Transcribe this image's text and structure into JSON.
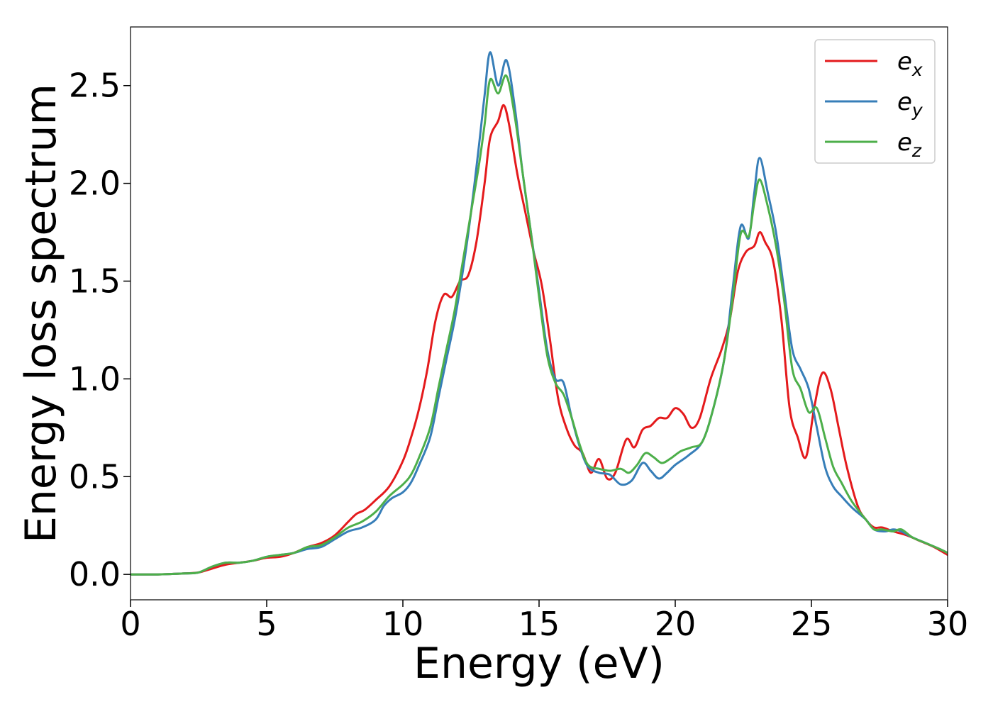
{
  "chart_data": {
    "type": "line",
    "xlabel": "Energy (eV)",
    "ylabel": "Energy loss spectrum",
    "xlim": [
      0,
      30
    ],
    "ylim": [
      -0.13,
      2.8
    ],
    "xticks": [
      0,
      5,
      10,
      15,
      20,
      25,
      30
    ],
    "xtick_labels": [
      "0",
      "5",
      "10",
      "15",
      "20",
      "25",
      "30"
    ],
    "yticks": [
      0.0,
      0.5,
      1.0,
      1.5,
      2.0,
      2.5
    ],
    "ytick_labels": [
      "0.0",
      "0.5",
      "1.0",
      "1.5",
      "2.0",
      "2.5"
    ],
    "grid": false,
    "legend_position": "top-right",
    "series": [
      {
        "name": "e",
        "subscript": "x",
        "color": "#e41a1c",
        "points": [
          [
            0,
            0
          ],
          [
            1,
            0
          ],
          [
            2,
            0.005
          ],
          [
            2.5,
            0.01
          ],
          [
            3,
            0.03
          ],
          [
            3.5,
            0.05
          ],
          [
            4,
            0.06
          ],
          [
            4.5,
            0.07
          ],
          [
            5,
            0.085
          ],
          [
            5.5,
            0.09
          ],
          [
            6,
            0.11
          ],
          [
            6.5,
            0.14
          ],
          [
            7,
            0.16
          ],
          [
            7.5,
            0.2
          ],
          [
            8,
            0.27
          ],
          [
            8.3,
            0.31
          ],
          [
            8.6,
            0.33
          ],
          [
            9,
            0.38
          ],
          [
            9.5,
            0.45
          ],
          [
            10,
            0.58
          ],
          [
            10.3,
            0.7
          ],
          [
            10.6,
            0.85
          ],
          [
            10.9,
            1.05
          ],
          [
            11.2,
            1.3
          ],
          [
            11.5,
            1.43
          ],
          [
            11.8,
            1.42
          ],
          [
            12.1,
            1.5
          ],
          [
            12.4,
            1.53
          ],
          [
            12.7,
            1.7
          ],
          [
            13,
            2
          ],
          [
            13.2,
            2.23
          ],
          [
            13.5,
            2.32
          ],
          [
            13.7,
            2.4
          ],
          [
            13.9,
            2.3
          ],
          [
            14.2,
            2.05
          ],
          [
            14.5,
            1.85
          ],
          [
            14.8,
            1.65
          ],
          [
            15.1,
            1.48
          ],
          [
            15.4,
            1.2
          ],
          [
            15.7,
            0.9
          ],
          [
            16,
            0.75
          ],
          [
            16.3,
            0.66
          ],
          [
            16.6,
            0.62
          ],
          [
            16.9,
            0.52
          ],
          [
            17.2,
            0.59
          ],
          [
            17.5,
            0.49
          ],
          [
            17.8,
            0.52
          ],
          [
            18.2,
            0.69
          ],
          [
            18.5,
            0.65
          ],
          [
            18.8,
            0.74
          ],
          [
            19.1,
            0.76
          ],
          [
            19.4,
            0.8
          ],
          [
            19.7,
            0.8
          ],
          [
            20,
            0.85
          ],
          [
            20.3,
            0.82
          ],
          [
            20.6,
            0.75
          ],
          [
            20.9,
            0.8
          ],
          [
            21.3,
            1
          ],
          [
            21.7,
            1.15
          ],
          [
            22,
            1.3
          ],
          [
            22.3,
            1.55
          ],
          [
            22.6,
            1.65
          ],
          [
            22.9,
            1.68
          ],
          [
            23.1,
            1.75
          ],
          [
            23.3,
            1.7
          ],
          [
            23.6,
            1.6
          ],
          [
            23.9,
            1.3
          ],
          [
            24.2,
            0.85
          ],
          [
            24.5,
            0.7
          ],
          [
            24.8,
            0.6
          ],
          [
            25.1,
            0.85
          ],
          [
            25.4,
            1.03
          ],
          [
            25.7,
            0.95
          ],
          [
            26,
            0.75
          ],
          [
            26.3,
            0.55
          ],
          [
            26.7,
            0.35
          ],
          [
            27,
            0.28
          ],
          [
            27.3,
            0.24
          ],
          [
            27.6,
            0.24
          ],
          [
            28,
            0.22
          ],
          [
            28.5,
            0.2
          ],
          [
            29,
            0.17
          ],
          [
            29.5,
            0.14
          ],
          [
            30,
            0.1
          ]
        ]
      },
      {
        "name": "e",
        "subscript": "y",
        "color": "#377eb8",
        "points": [
          [
            0,
            0
          ],
          [
            1,
            0
          ],
          [
            2,
            0.005
          ],
          [
            2.5,
            0.01
          ],
          [
            3,
            0.04
          ],
          [
            3.5,
            0.06
          ],
          [
            4,
            0.06
          ],
          [
            4.5,
            0.07
          ],
          [
            5,
            0.09
          ],
          [
            5.5,
            0.1
          ],
          [
            6,
            0.11
          ],
          [
            6.5,
            0.13
          ],
          [
            7,
            0.14
          ],
          [
            7.5,
            0.18
          ],
          [
            8,
            0.22
          ],
          [
            8.5,
            0.24
          ],
          [
            9,
            0.28
          ],
          [
            9.3,
            0.35
          ],
          [
            9.6,
            0.39
          ],
          [
            10,
            0.42
          ],
          [
            10.3,
            0.47
          ],
          [
            10.6,
            0.56
          ],
          [
            11,
            0.7
          ],
          [
            11.3,
            0.9
          ],
          [
            11.6,
            1.1
          ],
          [
            11.9,
            1.3
          ],
          [
            12.2,
            1.55
          ],
          [
            12.5,
            1.85
          ],
          [
            12.8,
            2.2
          ],
          [
            13,
            2.45
          ],
          [
            13.2,
            2.67
          ],
          [
            13.5,
            2.5
          ],
          [
            13.8,
            2.63
          ],
          [
            14.1,
            2.4
          ],
          [
            14.4,
            2.05
          ],
          [
            14.7,
            1.75
          ],
          [
            15,
            1.45
          ],
          [
            15.3,
            1.15
          ],
          [
            15.6,
            1
          ],
          [
            15.9,
            0.98
          ],
          [
            16.2,
            0.8
          ],
          [
            16.5,
            0.65
          ],
          [
            16.8,
            0.55
          ],
          [
            17.2,
            0.52
          ],
          [
            17.6,
            0.51
          ],
          [
            18,
            0.46
          ],
          [
            18.4,
            0.48
          ],
          [
            18.8,
            0.57
          ],
          [
            19.1,
            0.53
          ],
          [
            19.4,
            0.49
          ],
          [
            19.7,
            0.52
          ],
          [
            20,
            0.56
          ],
          [
            20.5,
            0.61
          ],
          [
            21,
            0.68
          ],
          [
            21.4,
            0.85
          ],
          [
            21.8,
            1.1
          ],
          [
            22.1,
            1.45
          ],
          [
            22.4,
            1.78
          ],
          [
            22.7,
            1.72
          ],
          [
            22.9,
            1.95
          ],
          [
            23.1,
            2.13
          ],
          [
            23.4,
            1.95
          ],
          [
            23.7,
            1.75
          ],
          [
            24,
            1.45
          ],
          [
            24.3,
            1.15
          ],
          [
            24.6,
            1.05
          ],
          [
            24.9,
            0.95
          ],
          [
            25.2,
            0.75
          ],
          [
            25.5,
            0.55
          ],
          [
            25.8,
            0.45
          ],
          [
            26.1,
            0.4
          ],
          [
            26.5,
            0.34
          ],
          [
            27,
            0.28
          ],
          [
            27.3,
            0.23
          ],
          [
            27.7,
            0.22
          ],
          [
            28,
            0.23
          ],
          [
            28.3,
            0.22
          ],
          [
            28.7,
            0.19
          ],
          [
            29.2,
            0.16
          ],
          [
            29.7,
            0.13
          ],
          [
            30,
            0.11
          ]
        ]
      },
      {
        "name": "e",
        "subscript": "z",
        "color": "#4daf4a",
        "points": [
          [
            0,
            0
          ],
          [
            1,
            0
          ],
          [
            2,
            0.005
          ],
          [
            2.5,
            0.01
          ],
          [
            3,
            0.04
          ],
          [
            3.5,
            0.06
          ],
          [
            4,
            0.06
          ],
          [
            4.5,
            0.07
          ],
          [
            5,
            0.09
          ],
          [
            5.5,
            0.1
          ],
          [
            6,
            0.11
          ],
          [
            6.5,
            0.14
          ],
          [
            7,
            0.15
          ],
          [
            7.5,
            0.19
          ],
          [
            8,
            0.24
          ],
          [
            8.5,
            0.27
          ],
          [
            9,
            0.32
          ],
          [
            9.5,
            0.4
          ],
          [
            10,
            0.46
          ],
          [
            10.3,
            0.51
          ],
          [
            10.6,
            0.6
          ],
          [
            11,
            0.75
          ],
          [
            11.3,
            0.95
          ],
          [
            11.6,
            1.15
          ],
          [
            11.9,
            1.35
          ],
          [
            12.2,
            1.6
          ],
          [
            12.5,
            1.85
          ],
          [
            12.8,
            2.1
          ],
          [
            13,
            2.3
          ],
          [
            13.2,
            2.53
          ],
          [
            13.5,
            2.46
          ],
          [
            13.8,
            2.55
          ],
          [
            14.1,
            2.35
          ],
          [
            14.4,
            2.05
          ],
          [
            14.7,
            1.75
          ],
          [
            15,
            1.42
          ],
          [
            15.3,
            1.12
          ],
          [
            15.6,
            0.98
          ],
          [
            15.9,
            0.92
          ],
          [
            16.2,
            0.8
          ],
          [
            16.5,
            0.66
          ],
          [
            16.8,
            0.56
          ],
          [
            17.2,
            0.54
          ],
          [
            17.6,
            0.53
          ],
          [
            18,
            0.54
          ],
          [
            18.3,
            0.52
          ],
          [
            18.6,
            0.56
          ],
          [
            18.9,
            0.62
          ],
          [
            19.2,
            0.6
          ],
          [
            19.5,
            0.57
          ],
          [
            19.8,
            0.59
          ],
          [
            20.2,
            0.63
          ],
          [
            20.6,
            0.65
          ],
          [
            21,
            0.68
          ],
          [
            21.4,
            0.85
          ],
          [
            21.8,
            1.1
          ],
          [
            22.1,
            1.4
          ],
          [
            22.4,
            1.74
          ],
          [
            22.7,
            1.73
          ],
          [
            22.9,
            1.9
          ],
          [
            23.1,
            2.02
          ],
          [
            23.4,
            1.88
          ],
          [
            23.7,
            1.68
          ],
          [
            24,
            1.4
          ],
          [
            24.3,
            1.05
          ],
          [
            24.6,
            0.95
          ],
          [
            24.9,
            0.83
          ],
          [
            25.2,
            0.85
          ],
          [
            25.5,
            0.7
          ],
          [
            25.8,
            0.55
          ],
          [
            26.1,
            0.47
          ],
          [
            26.5,
            0.37
          ],
          [
            27,
            0.28
          ],
          [
            27.3,
            0.23
          ],
          [
            27.6,
            0.23
          ],
          [
            28,
            0.22
          ],
          [
            28.3,
            0.23
          ],
          [
            28.7,
            0.19
          ],
          [
            29.2,
            0.16
          ],
          [
            29.7,
            0.13
          ],
          [
            30,
            0.11
          ]
        ]
      }
    ]
  }
}
